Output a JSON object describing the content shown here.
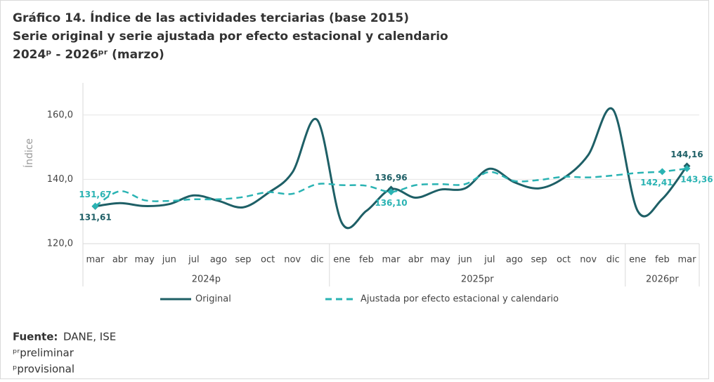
{
  "chart_data": {
    "type": "line",
    "title": "Gráfico 14. Índice de las actividades terciarias (base 2015)",
    "subtitle": "Serie original y serie ajustada por efecto estacional y calendario",
    "period": "2024ᵖ - 2026ᵖʳ (marzo)",
    "y_label": "Índice",
    "categories": [
      "mar",
      "abr",
      "may",
      "jun",
      "jul",
      "ago",
      "sep",
      "oct",
      "nov",
      "dic",
      "ene",
      "feb",
      "mar",
      "abr",
      "may",
      "jun",
      "jul",
      "ago",
      "sep",
      "oct",
      "nov",
      "dic",
      "ene",
      "feb",
      "mar"
    ],
    "x_groups": [
      {
        "label": "2024p",
        "count": 10
      },
      {
        "label": "2025pr",
        "count": 12
      },
      {
        "label": "2026pr",
        "count": 3
      }
    ],
    "ylim": [
      120,
      170
    ],
    "yticks": [
      {
        "value": 120,
        "label": "120,0"
      },
      {
        "value": 140,
        "label": "140,0"
      },
      {
        "value": 160,
        "label": "160,0"
      }
    ],
    "grid": true,
    "series": [
      {
        "name": "Original",
        "color": "#1e5f66",
        "dash": false,
        "values": [
          131.61,
          132.6,
          131.7,
          132.3,
          135.0,
          133.3,
          131.3,
          135.7,
          142.2,
          158.5,
          126.5,
          130.2,
          136.96,
          134.3,
          136.8,
          137.2,
          143.3,
          139.1,
          137.2,
          140.4,
          147.6,
          161.7,
          130.2,
          133.9,
          144.16
        ],
        "value_labels": [
          "131,61",
          null,
          null,
          null,
          null,
          null,
          null,
          null,
          null,
          null,
          null,
          null,
          "136,96",
          null,
          null,
          null,
          null,
          null,
          null,
          null,
          null,
          null,
          null,
          null,
          "144,16"
        ]
      },
      {
        "name": "Ajustada por efecto estacional y calendario",
        "color": "#2ab3b3",
        "dash": true,
        "values": [
          131.67,
          136.3,
          133.5,
          133.3,
          133.8,
          133.8,
          134.5,
          136.0,
          135.5,
          138.5,
          138.2,
          138.0,
          136.1,
          138.2,
          138.5,
          138.5,
          142.3,
          139.5,
          139.8,
          140.8,
          140.6,
          141.2,
          142.0,
          142.41,
          143.36
        ],
        "value_labels": [
          "131,67",
          null,
          null,
          null,
          null,
          null,
          null,
          null,
          null,
          null,
          null,
          null,
          "136,10",
          null,
          null,
          null,
          null,
          null,
          null,
          null,
          null,
          null,
          null,
          "142,41",
          "143,36"
        ]
      }
    ],
    "source_label": "Fuente:",
    "source": "DANE, ISE",
    "notes": [
      "ᵖʳpreliminar",
      "ᵖprovisional"
    ]
  }
}
